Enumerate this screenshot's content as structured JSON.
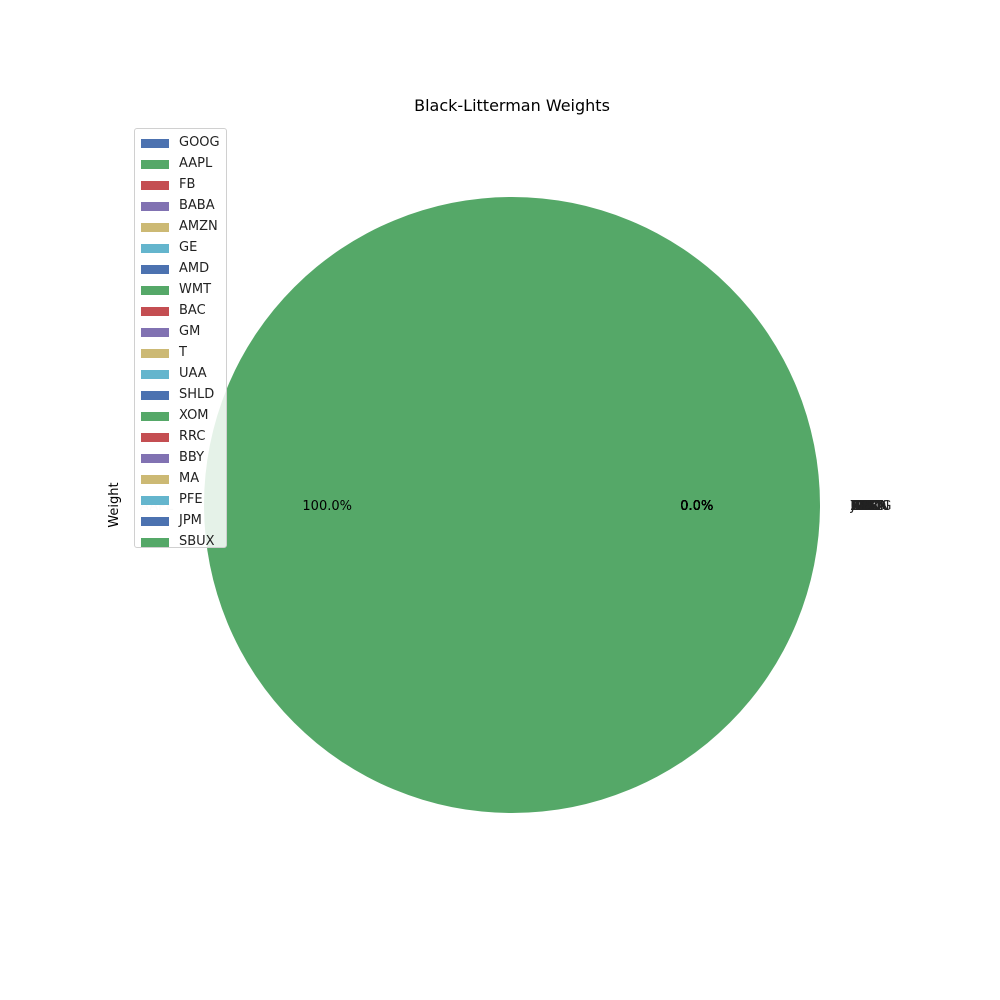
{
  "chart_data": {
    "type": "pie",
    "title": "Black-Litterman Weights",
    "ylabel": "Weight",
    "categories": [
      "GOOG",
      "AAPL",
      "FB",
      "BABA",
      "AMZN",
      "GE",
      "AMD",
      "WMT",
      "BAC",
      "GM",
      "T",
      "UAA",
      "SHLD",
      "XOM",
      "RRC",
      "BBY",
      "MA",
      "PFE",
      "JPM",
      "SBUX"
    ],
    "values": [
      0.0,
      1.0,
      0.0,
      0.0,
      0.0,
      0.0,
      0.0,
      0.0,
      0.0,
      0.0,
      0.0,
      0.0,
      0.0,
      0.0,
      0.0,
      0.0,
      0.0,
      0.0,
      0.0,
      0.0
    ],
    "autopct_labels": [
      "0.0%",
      "100.0%",
      "0.0%",
      "0.0%",
      "0.0%",
      "0.0%",
      "0.0%",
      "0.0%",
      "0.0%",
      "0.0%",
      "0.0%",
      "0.0%",
      "0.0%",
      "0.0%",
      "0.0%",
      "0.0%",
      "0.0%",
      "0.0%",
      "0.0%",
      "0.0%"
    ],
    "colors": [
      "#4c72b0",
      "#55a868",
      "#c44e52",
      "#8172b2",
      "#ccb974",
      "#64b5cd"
    ],
    "legend": "upper-left"
  }
}
